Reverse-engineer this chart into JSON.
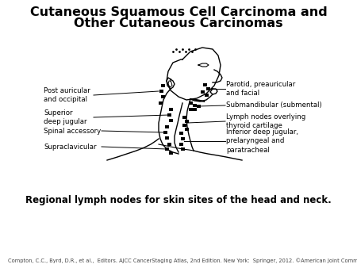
{
  "title_line1": "Cutaneous Squamous Cell Carcinoma and",
  "title_line2": "Other Cutaneous Carcinomas",
  "caption": "Regional lymph nodes for skin sites of the head and neck.",
  "footnote": "Compton, C.C., Byrd, D.R., et al.,  Editors. AJCC CancerStaging Atlas, 2nd Edition. New York:  Springer, 2012. ©American Joint Committee on Cancer",
  "bg_color": "#ffffff",
  "title_fontsize": 11.5,
  "caption_fontsize": 8.5,
  "footnote_fontsize": 4.8,
  "label_fontsize": 6.2,
  "fig_width": 4.5,
  "fig_height": 3.38,
  "dpi": 100
}
